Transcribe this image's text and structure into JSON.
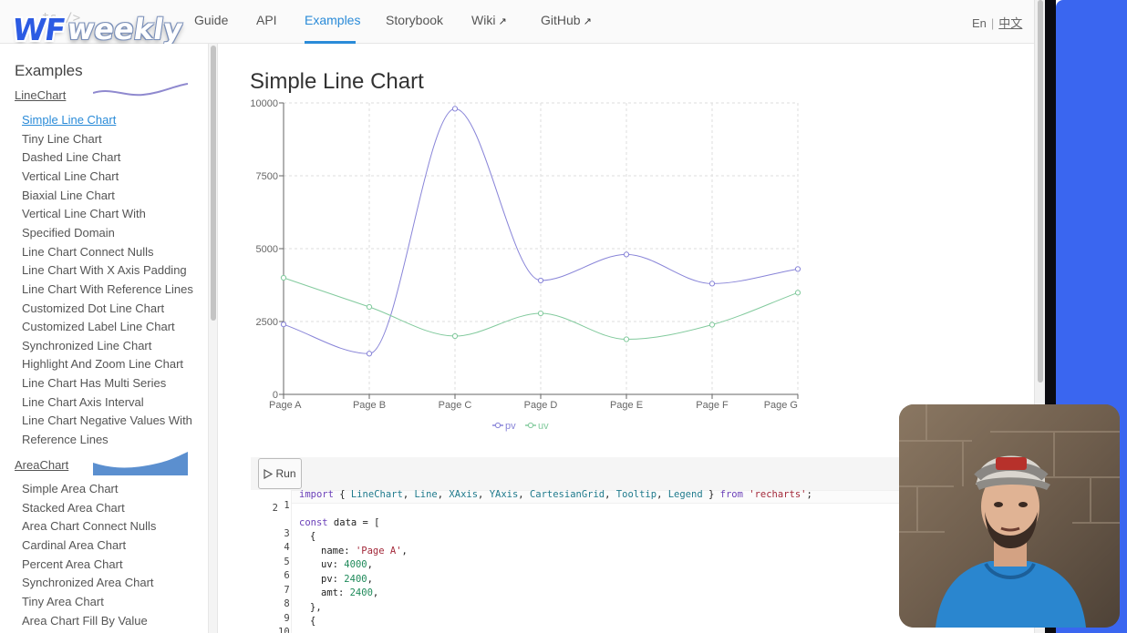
{
  "nav": {
    "faded_logo_text": "ts />",
    "items": [
      {
        "label": "Guide"
      },
      {
        "label": "API"
      },
      {
        "label": "Examples"
      },
      {
        "label": "Storybook"
      },
      {
        "label": "Wiki"
      },
      {
        "label": "GitHub"
      }
    ],
    "lang_en": "En",
    "lang_sep": "|",
    "lang_zh": "中文"
  },
  "watermark": {
    "wf": "WF",
    "weekly": "weekly"
  },
  "sidebar": {
    "title": "Examples",
    "categories": [
      {
        "label": "LineChart",
        "thumbnail": "line-wave"
      },
      {
        "label": "AreaChart",
        "thumbnail": "area-wave"
      }
    ],
    "line_items": [
      "Simple Line Chart",
      "Tiny Line Chart",
      "Dashed Line Chart",
      "Vertical Line Chart",
      "Biaxial Line Chart",
      "Vertical Line Chart With",
      "Specified Domain",
      "Line Chart Connect Nulls",
      "Line Chart With X Axis Padding",
      "Line Chart With Reference Lines",
      "Customized Dot Line Chart",
      "Customized Label Line Chart",
      "Synchronized Line Chart",
      "Highlight And Zoom Line Chart",
      "Line Chart Has Multi Series",
      "Line Chart Axis Interval",
      "Line Chart Negative Values With",
      "Reference Lines"
    ],
    "area_items": [
      "Simple Area Chart",
      "Stacked Area Chart",
      "Area Chart Connect Nulls",
      "Cardinal Area Chart",
      "Percent Area Chart",
      "Synchronized Area Chart",
      "Tiny Area Chart",
      "Area Chart Fill By Value"
    ]
  },
  "main": {
    "title": "Simple Line Chart",
    "run_label": "Run"
  },
  "chart_data": {
    "type": "line",
    "categories": [
      "Page A",
      "Page B",
      "Page C",
      "Page D",
      "Page E",
      "Page F",
      "Page G"
    ],
    "series": [
      {
        "name": "pv",
        "color": "#8884d8",
        "values": [
          2400,
          1398,
          9800,
          3908,
          4800,
          3800,
          4300
        ]
      },
      {
        "name": "uv",
        "color": "#82ca9d",
        "values": [
          4000,
          3000,
          2000,
          2780,
          1890,
          2390,
          3490
        ]
      }
    ],
    "yticks": [
      "0",
      "2500",
      "5000",
      "7500",
      "10000"
    ],
    "ylim": [
      0,
      10000
    ],
    "grid": true,
    "legend": "bottom-center"
  },
  "code": {
    "line_numbers": [
      "1",
      "2",
      "3",
      "4",
      "5",
      "6",
      "7",
      "8",
      "9",
      "10"
    ],
    "line1": {
      "kw_import": "import",
      "open": " { ",
      "ids": [
        "LineChart",
        "Line",
        "XAxis",
        "YAxis",
        "CartesianGrid",
        "Tooltip",
        "Legend"
      ],
      "close": " } ",
      "kw_from": "from",
      "module": "'recharts'",
      "end": ";"
    },
    "line3": {
      "kw": "const",
      "rest": " data = ["
    },
    "line4": "{",
    "line5": {
      "key": "name: ",
      "val": "'Page A'",
      "end": ","
    },
    "line6": {
      "key": "uv: ",
      "val": "4000",
      "end": ","
    },
    "line7": {
      "key": "pv: ",
      "val": "2400",
      "end": ","
    },
    "line8": {
      "key": "amt: ",
      "val": "2400",
      "end": ","
    },
    "line9": "},",
    "line10": "{"
  },
  "colors": {
    "accent": "#2a8bd8",
    "pv": "#8884d8",
    "uv": "#82ca9d",
    "edge_blue": "#3a66f0"
  }
}
